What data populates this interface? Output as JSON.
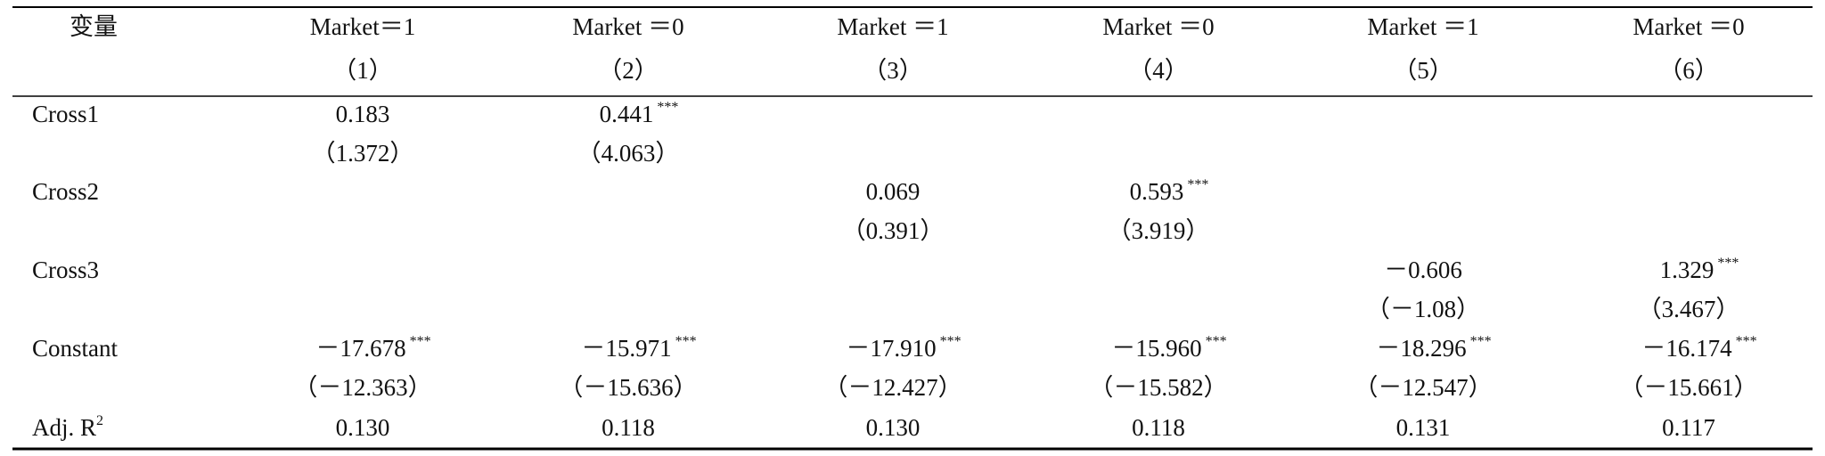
{
  "table": {
    "header": {
      "label": "变量",
      "columns": [
        {
          "market": "Market＝1",
          "number": "（1）"
        },
        {
          "market": "Market ＝0",
          "number": "（2）"
        },
        {
          "market": "Market ＝1",
          "number": "（3）"
        },
        {
          "market": "Market ＝0",
          "number": "（4）"
        },
        {
          "market": "Market ＝1",
          "number": "（5）"
        },
        {
          "market": "Market ＝0",
          "number": "（6）"
        }
      ]
    },
    "rows": [
      {
        "label": "Cross1",
        "cells": [
          {
            "coef": "0.183",
            "t": "（1.372）"
          },
          {
            "coef": "0.441",
            "stars": "***",
            "t": "（4.063）"
          },
          null,
          null,
          null,
          null
        ]
      },
      {
        "label": "Cross2",
        "cells": [
          null,
          null,
          {
            "coef": "0.069",
            "t": "（0.391）"
          },
          {
            "coef": "0.593",
            "stars": "***",
            "t": "（3.919）"
          },
          null,
          null
        ]
      },
      {
        "label": "Cross3",
        "cells": [
          null,
          null,
          null,
          null,
          {
            "coef": "－0.606",
            "t": "（－1.08）"
          },
          {
            "coef": "1.329",
            "stars": "***",
            "t": "（3.467）"
          }
        ]
      },
      {
        "label": "Constant",
        "cells": [
          {
            "coef": "－17.678",
            "stars": "***",
            "t": "（－12.363）"
          },
          {
            "coef": "－15.971",
            "stars": "***",
            "t": "（－15.636）"
          },
          {
            "coef": "－17.910",
            "stars": "***",
            "t": "（－12.427）"
          },
          {
            "coef": "－15.960",
            "stars": "***",
            "t": "（－15.582）"
          },
          {
            "coef": "－18.296",
            "stars": "***",
            "t": "（－12.547）"
          },
          {
            "coef": "－16.174",
            "stars": "***",
            "t": "（－15.661）"
          }
        ]
      },
      {
        "label": "Adj. R",
        "label_sup": "2",
        "cells": [
          {
            "coef": "0.130"
          },
          {
            "coef": "0.118"
          },
          {
            "coef": "0.130"
          },
          {
            "coef": "0.118"
          },
          {
            "coef": "0.131"
          },
          {
            "coef": "0.117"
          }
        ]
      }
    ]
  }
}
